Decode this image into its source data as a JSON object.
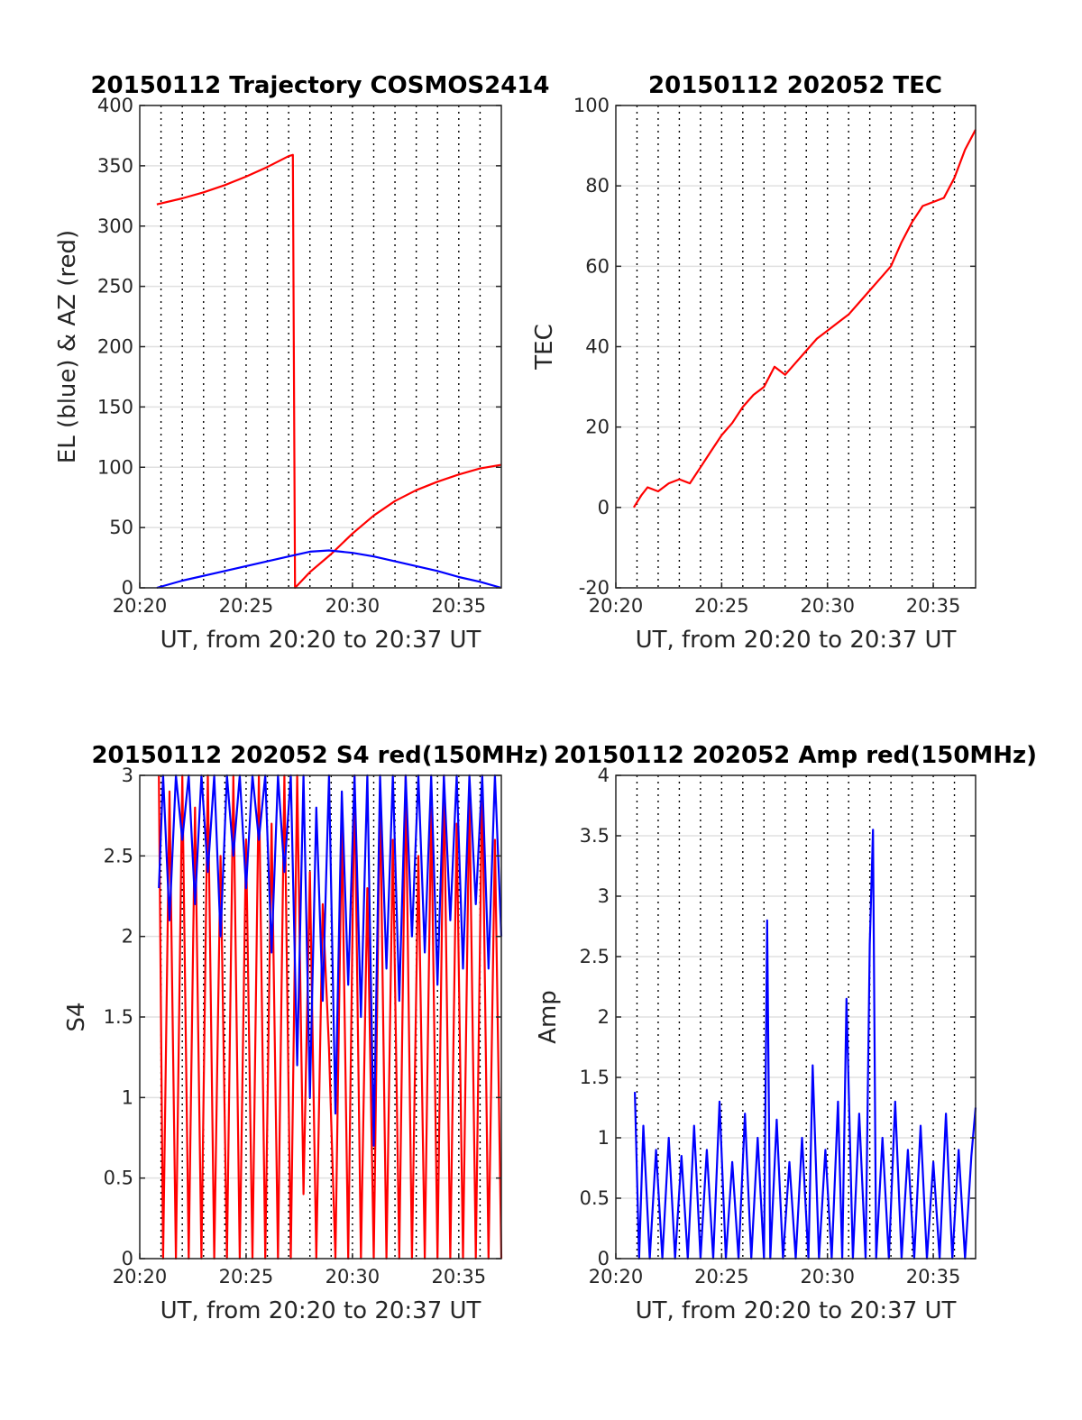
{
  "chart_data": [
    {
      "type": "line",
      "title": "20150112 Trajectory COSMOS2414",
      "xlabel": "UT, from 20:20 to 20:37 UT",
      "ylabel": "EL (blue) & AZ (red)",
      "xlim": [
        "20:20",
        "20:37"
      ],
      "x_ticks": [
        "20:20",
        "20:25",
        "20:30",
        "20:35"
      ],
      "ylim": [
        0,
        400
      ],
      "y_ticks": [
        "0",
        "50",
        "100",
        "150",
        "200",
        "250",
        "300",
        "350",
        "400"
      ],
      "grid": true,
      "series": [
        {
          "color": "#ff0000",
          "x": [
            "20:20.8",
            "20:22",
            "20:23",
            "20:24",
            "20:25",
            "20:26",
            "20:27",
            "20:27.2",
            "20:27.3",
            "20:28",
            "20:29",
            "20:30",
            "20:31",
            "20:32",
            "20:33",
            "20:34",
            "20:35",
            "20:36",
            "20:37"
          ],
          "values": [
            318,
            323,
            328,
            334,
            341,
            349,
            358,
            359,
            0,
            13,
            28,
            45,
            60,
            72,
            81,
            88,
            94,
            99,
            102
          ]
        },
        {
          "color": "#0000ff",
          "x": [
            "20:20.8",
            "20:22",
            "20:24",
            "20:26",
            "20:27",
            "20:28",
            "20:28.9",
            "20:30",
            "20:31",
            "20:32",
            "20:33",
            "20:34",
            "20:35",
            "20:36",
            "20:37"
          ],
          "values": [
            0,
            6,
            14,
            22,
            26,
            30,
            31,
            29,
            26,
            22,
            18,
            14,
            9,
            5,
            0
          ]
        }
      ]
    },
    {
      "type": "line",
      "title": "20150112 202052 TEC",
      "xlabel": "UT, from 20:20 to 20:37 UT",
      "ylabel": "TEC",
      "xlim": [
        "20:20",
        "20:37"
      ],
      "x_ticks": [
        "20:20",
        "20:25",
        "20:30",
        "20:35"
      ],
      "ylim": [
        -20,
        100
      ],
      "y_ticks": [
        "-20",
        "0",
        "20",
        "40",
        "60",
        "80",
        "100"
      ],
      "grid": true,
      "series": [
        {
          "color": "#ff0000",
          "x": [
            "20:20.85",
            "20:21.2",
            "20:21.5",
            "20:22",
            "20:22.5",
            "20:23",
            "20:23.5",
            "20:24",
            "20:24.5",
            "20:25",
            "20:25.5",
            "20:26",
            "20:26.5",
            "20:27",
            "20:27.5",
            "20:28",
            "20:28.5",
            "20:29",
            "20:29.5",
            "20:30",
            "20:30.5",
            "20:31",
            "20:31.5",
            "20:32",
            "20:32.5",
            "20:33",
            "20:33.5",
            "20:34",
            "20:34.5",
            "20:35",
            "20:35.5",
            "20:36",
            "20:36.5",
            "20:37"
          ],
          "values": [
            0,
            3,
            5,
            4,
            6,
            7,
            6,
            10,
            14,
            18,
            21,
            25,
            28,
            30,
            35,
            33,
            36,
            39,
            42,
            44,
            46,
            48,
            51,
            54,
            57,
            60,
            66,
            71,
            75,
            76,
            77,
            82,
            89,
            94
          ]
        }
      ]
    },
    {
      "type": "line",
      "title": "20150112 202052 S4 red(150MHz)",
      "xlabel": "UT, from 20:20 to 20:37 UT",
      "ylabel": "S4",
      "xlim": [
        "20:20",
        "20:37"
      ],
      "x_ticks": [
        "20:20",
        "20:25",
        "20:30",
        "20:35"
      ],
      "ylim": [
        0,
        3
      ],
      "y_ticks": [
        "0",
        "0.5",
        "1",
        "1.5",
        "2",
        "2.5",
        "3"
      ],
      "grid": true,
      "series": [
        {
          "color": "#ff0000",
          "x": [
            "20:20.9",
            "20:21.1",
            "20:21.4",
            "20:21.7",
            "20:22",
            "20:22.3",
            "20:22.6",
            "20:22.9",
            "20:23.2",
            "20:23.5",
            "20:23.8",
            "20:24.1",
            "20:24.4",
            "20:24.7",
            "20:25",
            "20:25.3",
            "20:25.6",
            "20:25.9",
            "20:26.2",
            "20:26.5",
            "20:26.8",
            "20:27.1",
            "20:27.4",
            "20:27.7",
            "20:28",
            "20:28.3",
            "20:28.6",
            "20:28.9",
            "20:29.2",
            "20:29.5",
            "20:29.8",
            "20:30.1",
            "20:30.4",
            "20:30.7",
            "20:31",
            "20:31.3",
            "20:31.6",
            "20:31.9",
            "20:32.2",
            "20:32.5",
            "20:32.8",
            "20:33.1",
            "20:33.4",
            "20:33.7",
            "20:34",
            "20:34.3",
            "20:34.6",
            "20:34.9",
            "20:35.2",
            "20:35.5",
            "20:35.8",
            "20:36.1",
            "20:36.4",
            "20:36.7",
            "20:37"
          ],
          "values": [
            3,
            0,
            2.9,
            0,
            3,
            0,
            2.8,
            0,
            3,
            0,
            2.5,
            0,
            3,
            0,
            2.6,
            0,
            3,
            0,
            2.7,
            0,
            3,
            0,
            3,
            0.4,
            2.4,
            0,
            2.2,
            1.3,
            0,
            2.7,
            0,
            3,
            0,
            2.3,
            0,
            2.9,
            0,
            2.6,
            0,
            3,
            0,
            2.5,
            0,
            2.8,
            0,
            3,
            0,
            2.7,
            0,
            2.9,
            0,
            3,
            0,
            2.6,
            0
          ]
        },
        {
          "color": "#0000ff",
          "x": [
            "20:20.9",
            "20:21.1",
            "20:21.4",
            "20:21.7",
            "20:22",
            "20:22.3",
            "20:22.6",
            "20:22.9",
            "20:23.2",
            "20:23.5",
            "20:23.8",
            "20:24.1",
            "20:24.4",
            "20:24.7",
            "20:25",
            "20:25.3",
            "20:25.6",
            "20:25.9",
            "20:26.2",
            "20:26.5",
            "20:26.8",
            "20:27.1",
            "20:27.4",
            "20:27.7",
            "20:28",
            "20:28.3",
            "20:28.6",
            "20:28.9",
            "20:29.2",
            "20:29.5",
            "20:29.8",
            "20:30.1",
            "20:30.4",
            "20:30.7",
            "20:31",
            "20:31.3",
            "20:31.6",
            "20:31.9",
            "20:32.2",
            "20:32.5",
            "20:32.8",
            "20:33.1",
            "20:33.4",
            "20:33.7",
            "20:34",
            "20:34.3",
            "20:34.6",
            "20:34.9",
            "20:35.2",
            "20:35.5",
            "20:35.8",
            "20:36.1",
            "20:36.4",
            "20:36.7",
            "20:37"
          ],
          "values": [
            2.3,
            3,
            2.1,
            3,
            2.6,
            3,
            2.2,
            3,
            2.4,
            3,
            2.0,
            3,
            2.5,
            3,
            2.3,
            3,
            2.6,
            3,
            1.9,
            3,
            2.4,
            3,
            1.2,
            3,
            1.0,
            2.8,
            1.6,
            3,
            0.9,
            2.9,
            1.7,
            3,
            1.5,
            3,
            0.7,
            3,
            1.8,
            3,
            1.6,
            3,
            2.0,
            3,
            1.9,
            3,
            1.7,
            3,
            2.1,
            3,
            1.8,
            3,
            2.2,
            3,
            1.8,
            3,
            2.0
          ]
        }
      ]
    },
    {
      "type": "line",
      "title": "20150112 202052 Amp red(150MHz)",
      "xlabel": "UT, from 20:20 to 20:37 UT",
      "ylabel": "Amp",
      "xlim": [
        "20:20",
        "20:37"
      ],
      "x_ticks": [
        "20:20",
        "20:25",
        "20:30",
        "20:35"
      ],
      "ylim": [
        0,
        4
      ],
      "y_ticks": [
        "0",
        "0.5",
        "1",
        "1.5",
        "2",
        "2.5",
        "3",
        "3.5",
        "4"
      ],
      "grid": true,
      "series": [
        {
          "color": "#0000ff",
          "x": [
            "20:20.9",
            "20:21.1",
            "20:21.3",
            "20:21.6",
            "20:21.9",
            "20:22.2",
            "20:22.5",
            "20:22.8",
            "20:23.1",
            "20:23.4",
            "20:23.7",
            "20:24",
            "20:24.3",
            "20:24.6",
            "20:24.9",
            "20:25.2",
            "20:25.5",
            "20:25.8",
            "20:26.1",
            "20:26.4",
            "20:26.7",
            "20:27",
            "20:27.15",
            "20:27.3",
            "20:27.6",
            "20:27.9",
            "20:28.2",
            "20:28.5",
            "20:28.8",
            "20:29.1",
            "20:29.3",
            "20:29.6",
            "20:29.9",
            "20:30.2",
            "20:30.5",
            "20:30.7",
            "20:30.9",
            "20:31.2",
            "20:31.5",
            "20:31.8",
            "20:32.0",
            "20:32.15",
            "20:32.3",
            "20:32.6",
            "20:32.9",
            "20:33.2",
            "20:33.5",
            "20:33.8",
            "20:34.1",
            "20:34.4",
            "20:34.7",
            "20:35",
            "20:35.3",
            "20:35.6",
            "20:35.9",
            "20:36.2",
            "20:36.5",
            "20:36.8",
            "20:37"
          ],
          "values": [
            1.38,
            0,
            1.1,
            0,
            0.9,
            0,
            1.0,
            0,
            0.85,
            0,
            1.1,
            0,
            0.9,
            0,
            1.3,
            0,
            0.8,
            0,
            1.2,
            0,
            1.0,
            0,
            2.8,
            0,
            1.15,
            0,
            0.8,
            0,
            1.0,
            0,
            1.6,
            0,
            0.9,
            0,
            1.3,
            0,
            2.15,
            0,
            1.2,
            0,
            2.6,
            3.55,
            0,
            1.0,
            0,
            1.3,
            0,
            0.9,
            0,
            1.1,
            0,
            0.8,
            0,
            1.2,
            0,
            0.9,
            0,
            0.85,
            1.25
          ]
        }
      ]
    }
  ]
}
